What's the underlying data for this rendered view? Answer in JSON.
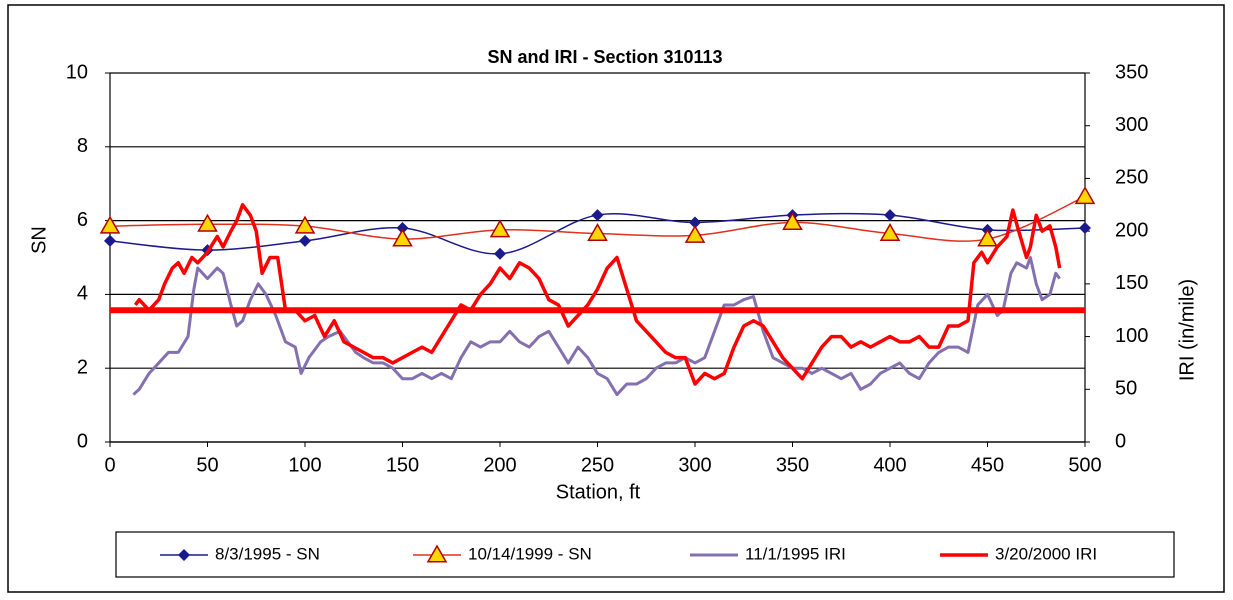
{
  "chart_data": {
    "type": "line",
    "title": "SN and IRI - Section 310113",
    "x_label": "Station, ft",
    "y_label": "SN",
    "y2_label": "IRI (in/mile)",
    "xlim": [
      0,
      500
    ],
    "xticks": [
      0,
      50,
      100,
      150,
      200,
      250,
      300,
      350,
      400,
      450,
      500
    ],
    "ylim": [
      0,
      10
    ],
    "yticks": [
      0,
      2,
      4,
      6,
      8,
      10
    ],
    "y2lim": [
      0,
      350
    ],
    "y2ticks": [
      0,
      50,
      100,
      150,
      200,
      250,
      300,
      350
    ],
    "grid": true,
    "legend": "bottom",
    "series": [
      {
        "name": "8/3/1995 - SN",
        "color": "#1a1a8c",
        "marker": "diamond",
        "marker_fill": "#1a1a8c",
        "smooth": true,
        "x": [
          0,
          50,
          100,
          150,
          200,
          250,
          300,
          350,
          400,
          450,
          500
        ],
        "values": [
          5.45,
          5.2,
          5.45,
          5.8,
          5.1,
          6.15,
          5.95,
          6.15,
          6.15,
          5.75,
          5.8
        ]
      },
      {
        "name": "10/14/1999 -  SN",
        "color": "#e0301e",
        "marker": "triangle",
        "marker_fill": "#ffd700",
        "marker_stroke": "#b00000",
        "smooth": true,
        "x": [
          0,
          50,
          100,
          150,
          200,
          250,
          300,
          350,
          400,
          450,
          500
        ],
        "values": [
          5.85,
          5.9,
          5.85,
          5.5,
          5.75,
          5.65,
          5.6,
          5.95,
          5.65,
          5.5,
          6.65
        ]
      },
      {
        "name": "11/1/1995 IRI",
        "color": "#8470b0",
        "axis": "y2",
        "width": 3,
        "x": [
          12,
          15,
          20,
          25,
          30,
          35,
          40,
          43,
          45,
          50,
          55,
          58,
          62,
          65,
          68,
          72,
          76,
          80,
          85,
          90,
          95,
          98,
          102,
          108,
          112,
          118,
          122,
          126,
          130,
          135,
          140,
          145,
          150,
          155,
          160,
          165,
          170,
          175,
          180,
          185,
          190,
          195,
          200,
          205,
          210,
          215,
          220,
          225,
          230,
          235,
          240,
          245,
          250,
          255,
          260,
          265,
          270,
          275,
          280,
          285,
          290,
          295,
          300,
          305,
          310,
          315,
          320,
          325,
          330,
          335,
          340,
          345,
          350,
          355,
          360,
          365,
          370,
          375,
          380,
          385,
          390,
          395,
          400,
          405,
          410,
          415,
          420,
          425,
          430,
          435,
          440,
          445,
          450,
          455,
          458,
          462,
          465,
          470,
          472,
          475,
          478,
          482,
          485,
          487
        ],
        "values": [
          45,
          50,
          65,
          75,
          85,
          85,
          100,
          145,
          165,
          155,
          165,
          160,
          130,
          110,
          115,
          135,
          150,
          140,
          120,
          95,
          90,
          65,
          80,
          95,
          100,
          105,
          95,
          85,
          80,
          75,
          75,
          70,
          60,
          60,
          65,
          60,
          65,
          60,
          80,
          95,
          90,
          95,
          95,
          105,
          95,
          90,
          100,
          105,
          90,
          75,
          90,
          80,
          65,
          60,
          45,
          55,
          55,
          60,
          70,
          75,
          75,
          80,
          75,
          80,
          105,
          130,
          130,
          135,
          138,
          105,
          80,
          75,
          70,
          70,
          65,
          70,
          65,
          60,
          65,
          50,
          55,
          65,
          70,
          75,
          65,
          60,
          75,
          85,
          90,
          90,
          85,
          130,
          140,
          120,
          125,
          160,
          170,
          165,
          175,
          150,
          135,
          140,
          160,
          155
        ]
      },
      {
        "name": "3/20/2000 IRI",
        "color": "#ff0000",
        "axis": "y2",
        "width": 3.5,
        "x": [
          13,
          15,
          20,
          25,
          28,
          32,
          35,
          38,
          42,
          45,
          50,
          55,
          58,
          62,
          65,
          68,
          72,
          75,
          78,
          82,
          86,
          90,
          95,
          100,
          105,
          110,
          115,
          120,
          125,
          130,
          135,
          140,
          145,
          150,
          155,
          160,
          165,
          170,
          175,
          180,
          185,
          190,
          195,
          200,
          205,
          210,
          215,
          220,
          225,
          230,
          235,
          240,
          245,
          250,
          255,
          260,
          265,
          270,
          275,
          280,
          285,
          290,
          295,
          300,
          305,
          310,
          315,
          320,
          325,
          330,
          335,
          340,
          345,
          350,
          355,
          360,
          365,
          370,
          375,
          380,
          385,
          390,
          395,
          400,
          405,
          410,
          415,
          420,
          425,
          430,
          435,
          440,
          443,
          447,
          450,
          455,
          460,
          463,
          466,
          470,
          472,
          475,
          478,
          482,
          485,
          487
        ],
        "values": [
          130,
          135,
          125,
          135,
          150,
          165,
          170,
          160,
          175,
          170,
          180,
          195,
          185,
          200,
          210,
          225,
          215,
          200,
          160,
          175,
          175,
          125,
          125,
          115,
          120,
          100,
          115,
          95,
          90,
          85,
          80,
          80,
          75,
          80,
          85,
          90,
          85,
          100,
          115,
          130,
          125,
          140,
          150,
          165,
          155,
          170,
          165,
          155,
          135,
          130,
          110,
          120,
          130,
          145,
          165,
          175,
          145,
          115,
          105,
          95,
          85,
          80,
          80,
          55,
          65,
          60,
          65,
          90,
          110,
          115,
          110,
          95,
          80,
          70,
          60,
          75,
          90,
          100,
          100,
          90,
          95,
          90,
          95,
          100,
          95,
          95,
          100,
          90,
          90,
          110,
          110,
          115,
          170,
          180,
          170,
          185,
          195,
          220,
          200,
          175,
          185,
          215,
          200,
          205,
          185,
          165
        ]
      },
      {
        "color": "#ff0000",
        "axis": "y2",
        "width": 6,
        "x": [
          0,
          500
        ],
        "values": [
          125,
          125
        ]
      }
    ]
  }
}
